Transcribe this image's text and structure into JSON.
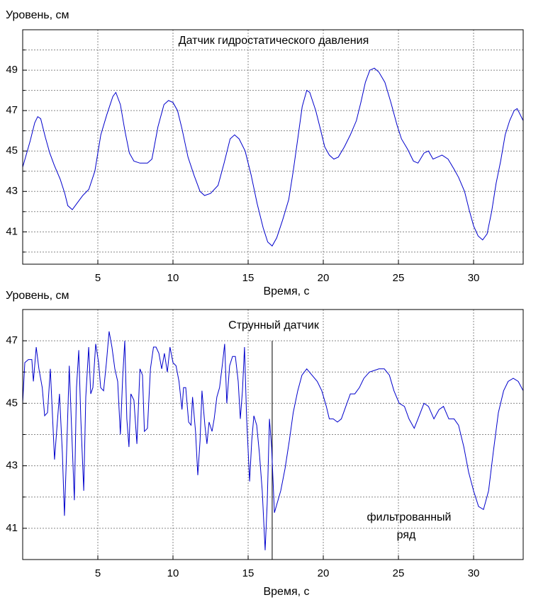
{
  "chart_data": [
    {
      "type": "line",
      "title": "Датчик гидростатического давления",
      "xlabel": "Время, с",
      "ylabel": "Уровень, см",
      "color": "#0000cc",
      "xlim": [
        0,
        33.3
      ],
      "xticks": [
        5,
        10,
        15,
        20,
        25,
        30
      ],
      "ylim": [
        39.4,
        51
      ],
      "yticks": [
        41,
        43,
        45,
        47,
        49
      ],
      "minor_yticks": [
        40,
        42,
        44,
        46,
        48,
        50
      ],
      "grid": true,
      "x": [
        0,
        0.5,
        0.8,
        1.0,
        1.2,
        1.5,
        1.8,
        2.1,
        2.5,
        2.8,
        3.0,
        3.3,
        3.6,
        4.0,
        4.4,
        4.8,
        5.2,
        5.6,
        6.0,
        6.2,
        6.5,
        6.8,
        7.1,
        7.4,
        7.8,
        8.3,
        8.6,
        9.0,
        9.4,
        9.7,
        10.0,
        10.3,
        10.6,
        11.0,
        11.4,
        11.8,
        12.1,
        12.5,
        13.0,
        13.4,
        13.8,
        14.1,
        14.4,
        14.8,
        15.2,
        15.6,
        16.0,
        16.3,
        16.6,
        16.9,
        17.3,
        17.7,
        18.0,
        18.3,
        18.6,
        18.9,
        19.1,
        19.5,
        19.8,
        20.1,
        20.4,
        20.7,
        21.0,
        21.4,
        21.8,
        22.2,
        22.5,
        22.8,
        23.1,
        23.4,
        23.7,
        24.1,
        24.5,
        24.9,
        25.2,
        25.6,
        26.0,
        26.3,
        26.7,
        27.0,
        27.3,
        27.6,
        27.9,
        28.3,
        28.7,
        29.0,
        29.4,
        29.7,
        30.0,
        30.3,
        30.6,
        30.9,
        31.2,
        31.5,
        31.8,
        32.1,
        32.4,
        32.7,
        32.9,
        33.3
      ],
      "values": [
        44.2,
        45.5,
        46.4,
        46.7,
        46.6,
        45.7,
        44.9,
        44.3,
        43.6,
        42.9,
        42.3,
        42.1,
        42.4,
        42.8,
        43.1,
        44.0,
        45.8,
        46.8,
        47.7,
        47.9,
        47.3,
        46.0,
        44.9,
        44.5,
        44.4,
        44.4,
        44.6,
        46.2,
        47.3,
        47.5,
        47.4,
        47.0,
        46.1,
        44.7,
        43.8,
        43.0,
        42.8,
        42.9,
        43.3,
        44.4,
        45.6,
        45.8,
        45.6,
        45.0,
        43.8,
        42.4,
        41.2,
        40.5,
        40.3,
        40.7,
        41.6,
        42.6,
        44.0,
        45.6,
        47.2,
        48.0,
        47.9,
        47.0,
        46.1,
        45.2,
        44.8,
        44.6,
        44.7,
        45.2,
        45.8,
        46.5,
        47.4,
        48.4,
        49.0,
        49.1,
        48.9,
        48.4,
        47.4,
        46.3,
        45.6,
        45.1,
        44.5,
        44.4,
        44.9,
        45.0,
        44.6,
        44.7,
        44.8,
        44.6,
        44.1,
        43.7,
        43.0,
        42.1,
        41.3,
        40.8,
        40.6,
        40.9,
        42.0,
        43.4,
        44.5,
        45.8,
        46.5,
        47.0,
        47.1,
        46.5
      ]
    },
    {
      "type": "line",
      "title": "Струнный датчик",
      "xlabel": "Время, с",
      "ylabel": "Уровень, см",
      "color": "#0000cc",
      "xlim": [
        0,
        33.3
      ],
      "xticks": [
        5,
        10,
        15,
        20,
        25,
        30
      ],
      "ylim": [
        40,
        48
      ],
      "yticks": [
        41,
        43,
        45,
        47
      ],
      "minor_yticks": [
        42,
        44,
        46
      ],
      "grid": true,
      "divider_x": 16.6,
      "annotation": [
        "фильтрованный",
        "ряд"
      ],
      "x": [
        0,
        0.14,
        0.38,
        0.61,
        0.71,
        0.9,
        1.08,
        1.3,
        1.46,
        1.65,
        1.84,
        2.12,
        2.26,
        2.45,
        2.64,
        2.78,
        2.92,
        3.1,
        3.3,
        3.44,
        3.58,
        3.73,
        3.87,
        4.06,
        4.2,
        4.39,
        4.53,
        4.67,
        4.86,
        5.05,
        5.19,
        5.38,
        5.57,
        5.75,
        5.94,
        6.13,
        6.32,
        6.5,
        6.65,
        6.79,
        6.93,
        7.07,
        7.2,
        7.4,
        7.6,
        7.8,
        7.97,
        8.1,
        8.3,
        8.5,
        8.7,
        8.87,
        9.06,
        9.25,
        9.43,
        9.62,
        9.8,
        10.0,
        10.2,
        10.4,
        10.6,
        10.7,
        10.85,
        11.04,
        11.2,
        11.3,
        11.5,
        11.65,
        11.8,
        11.93,
        12.12,
        12.26,
        12.4,
        12.6,
        12.74,
        12.92,
        13.1,
        13.3,
        13.44,
        13.58,
        13.77,
        13.96,
        14.15,
        14.34,
        14.48,
        14.62,
        14.76,
        14.9,
        15.1,
        15.24,
        15.38,
        15.57,
        15.75,
        15.94,
        16.13,
        16.27,
        16.42,
        16.56,
        16.75,
        16.93,
        17.17,
        17.45,
        17.74,
        18.0,
        18.3,
        18.58,
        18.9,
        19.25,
        19.6,
        19.9,
        20.2,
        20.4,
        20.66,
        20.94,
        21.2,
        21.5,
        21.8,
        22.1,
        22.4,
        22.7,
        23.07,
        23.4,
        23.7,
        24.06,
        24.4,
        24.7,
        25.05,
        25.4,
        25.7,
        26.05,
        26.3,
        26.7,
        27.0,
        27.36,
        27.7,
        28.0,
        28.35,
        28.7,
        29.0,
        29.35,
        29.67,
        30.0,
        30.33,
        30.66,
        31.0,
        31.3,
        31.65,
        32.0,
        32.3,
        32.64,
        32.97,
        33.3
      ],
      "values": [
        45.0,
        46.3,
        46.4,
        46.4,
        45.7,
        46.8,
        46.1,
        45.5,
        44.6,
        44.7,
        46.1,
        43.2,
        44.1,
        45.3,
        43.4,
        41.4,
        43.4,
        46.2,
        43.6,
        41.9,
        45.5,
        46.7,
        44.5,
        42.2,
        45.2,
        46.8,
        45.3,
        45.5,
        46.9,
        46.3,
        45.5,
        45.4,
        46.3,
        47.3,
        46.8,
        46.1,
        45.7,
        44.0,
        45.8,
        47.0,
        44.5,
        43.6,
        45.3,
        45.1,
        43.7,
        46.1,
        45.9,
        44.1,
        44.2,
        46.1,
        46.8,
        46.8,
        46.6,
        46.1,
        46.6,
        46.0,
        46.8,
        46.3,
        46.2,
        45.7,
        44.8,
        45.5,
        45.5,
        44.4,
        44.3,
        45.2,
        44.1,
        42.7,
        43.8,
        45.4,
        44.3,
        43.7,
        44.4,
        44.1,
        44.5,
        45.2,
        45.5,
        46.3,
        46.9,
        45.0,
        46.2,
        46.5,
        46.5,
        45.7,
        44.5,
        45.4,
        46.8,
        44.5,
        42.5,
        43.8,
        44.6,
        44.3,
        43.4,
        42.2,
        40.3,
        41.8,
        44.5,
        43.6,
        41.5,
        41.8,
        42.2,
        42.9,
        43.8,
        44.7,
        45.4,
        45.9,
        46.1,
        45.9,
        45.7,
        45.4,
        44.9,
        44.5,
        44.5,
        44.4,
        44.5,
        44.9,
        45.3,
        45.3,
        45.5,
        45.8,
        46.0,
        46.05,
        46.1,
        46.1,
        45.9,
        45.4,
        45.0,
        44.9,
        44.5,
        44.2,
        44.5,
        45.0,
        44.9,
        44.5,
        44.8,
        44.9,
        44.5,
        44.5,
        44.3,
        43.6,
        42.8,
        42.2,
        41.7,
        41.6,
        42.2,
        43.4,
        44.7,
        45.4,
        45.7,
        45.8,
        45.7,
        45.4
      ]
    }
  ]
}
